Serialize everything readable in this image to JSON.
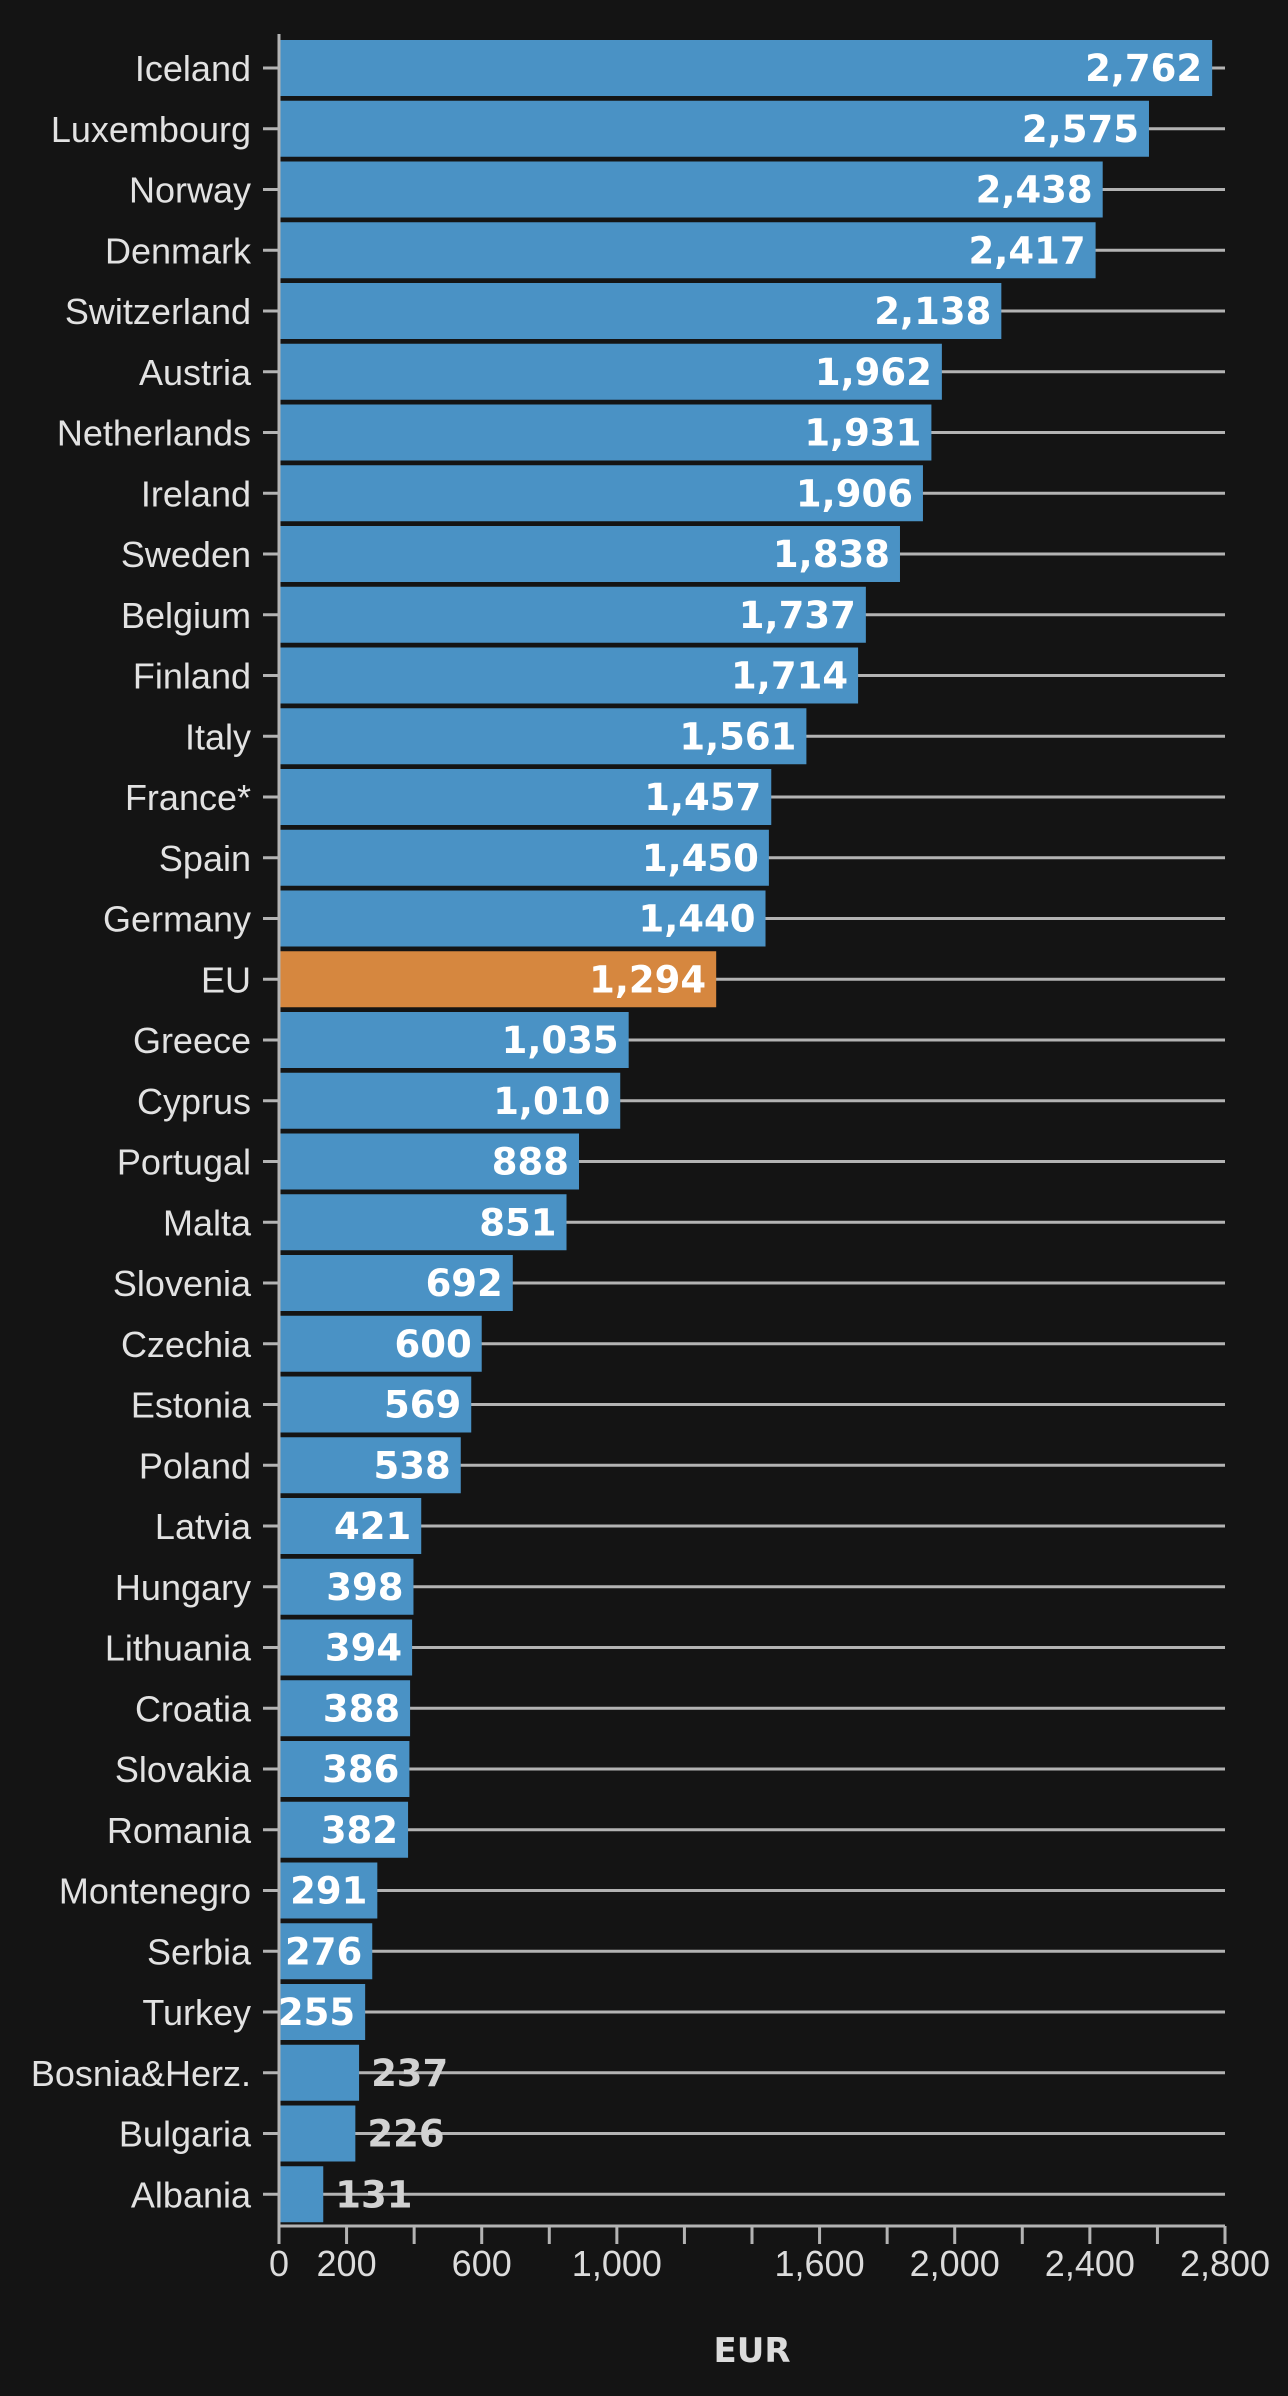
{
  "chart_data": {
    "type": "bar",
    "orientation": "horizontal",
    "categories": [
      "Iceland",
      "Luxembourg",
      "Norway",
      "Denmark",
      "Switzerland",
      "Austria",
      "Netherlands",
      "Ireland",
      "Sweden",
      "Belgium",
      "Finland",
      "Italy",
      "France*",
      "Spain",
      "Germany",
      "EU",
      "Greece",
      "Cyprus",
      "Portugal",
      "Malta",
      "Slovenia",
      "Czechia",
      "Estonia",
      "Poland",
      "Latvia",
      "Hungary",
      "Lithuania",
      "Croatia",
      "Slovakia",
      "Romania",
      "Montenegro",
      "Serbia",
      "Turkey",
      "Bosnia&Herz.",
      "Bulgaria",
      "Albania"
    ],
    "values": [
      2762,
      2575,
      2438,
      2417,
      2138,
      1962,
      1931,
      1906,
      1838,
      1737,
      1714,
      1561,
      1457,
      1450,
      1440,
      1294,
      1035,
      1010,
      888,
      851,
      692,
      600,
      569,
      538,
      421,
      398,
      394,
      388,
      386,
      382,
      291,
      276,
      255,
      237,
      226,
      131
    ],
    "value_labels": [
      "2,762",
      "2,575",
      "2,438",
      "2,417",
      "2,138",
      "1,962",
      "1,931",
      "1,906",
      "1,838",
      "1,737",
      "1,714",
      "1,561",
      "1,457",
      "1,450",
      "1,440",
      "1,294",
      "1,035",
      "1,010",
      "888",
      "851",
      "692",
      "600",
      "569",
      "538",
      "421",
      "398",
      "394",
      "388",
      "386",
      "382",
      "291",
      "276",
      "255",
      "237",
      "226",
      "131"
    ],
    "highlight": "EU",
    "colors": {
      "bar": "#4a92c5",
      "highlight": "#d6873f",
      "background": "#141414",
      "gridline": "#b3b3b3"
    },
    "xlim": [
      0,
      2800
    ],
    "x_ticks": [
      0,
      200,
      400,
      600,
      800,
      1000,
      1200,
      1400,
      1600,
      1800,
      2000,
      2200,
      2400,
      2600,
      2800
    ],
    "x_tick_labels": [
      {
        "value": 0,
        "label": "0"
      },
      {
        "value": 200,
        "label": "200"
      },
      {
        "value": 600,
        "label": "600"
      },
      {
        "value": 1000,
        "label": "1,000"
      },
      {
        "value": 1600,
        "label": "1,600"
      },
      {
        "value": 2000,
        "label": "2,000"
      },
      {
        "value": 2400,
        "label": "2,400"
      },
      {
        "value": 2800,
        "label": "2,800"
      }
    ],
    "xlabel": "EUR",
    "ylabel": "",
    "title": "",
    "grid": true,
    "legend": false
  }
}
